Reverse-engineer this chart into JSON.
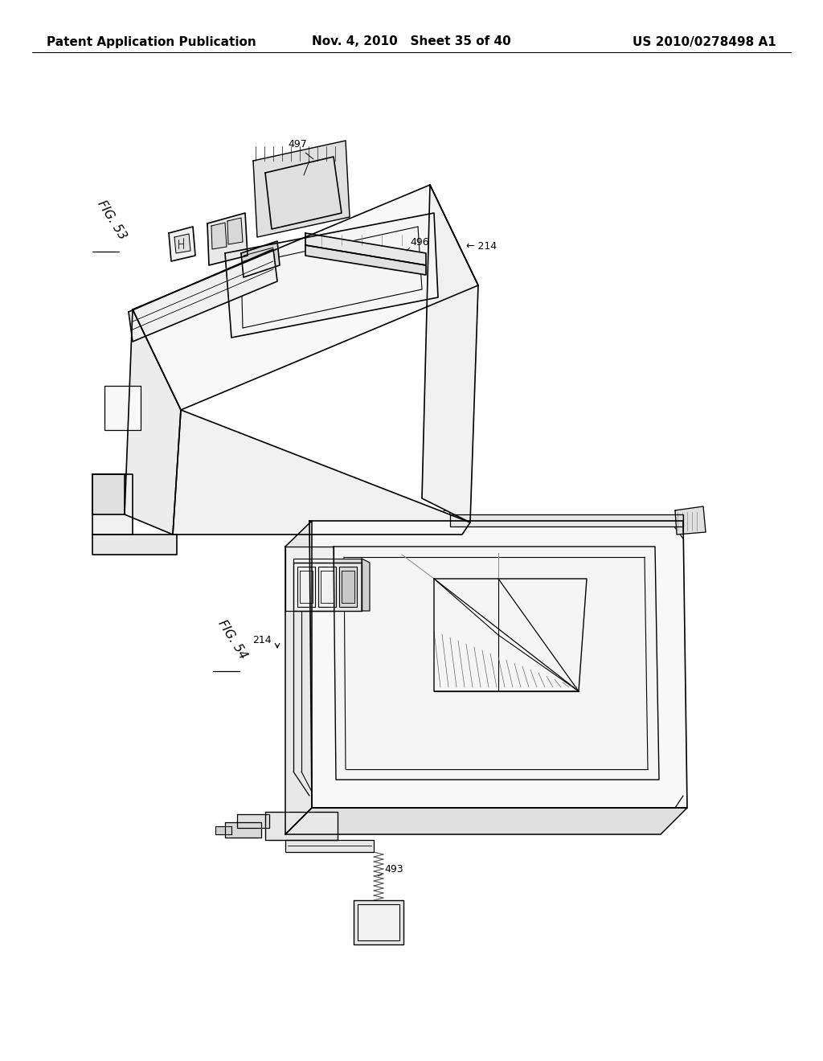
{
  "background_color": "#ffffff",
  "line_color": "#000000",
  "line_width": 1.2,
  "header_left": "Patent Application Publication",
  "header_center": "Nov. 4, 2010   Sheet 35 of 40",
  "header_right": "US 2010/0278498 A1",
  "header_fontsize": 11,
  "fig53_label": "FIG. 53",
  "fig54_label": "FIG. 54",
  "label_497": "497",
  "label_496": "496",
  "label_214a": "214",
  "label_214b": "214",
  "label_493": "493"
}
